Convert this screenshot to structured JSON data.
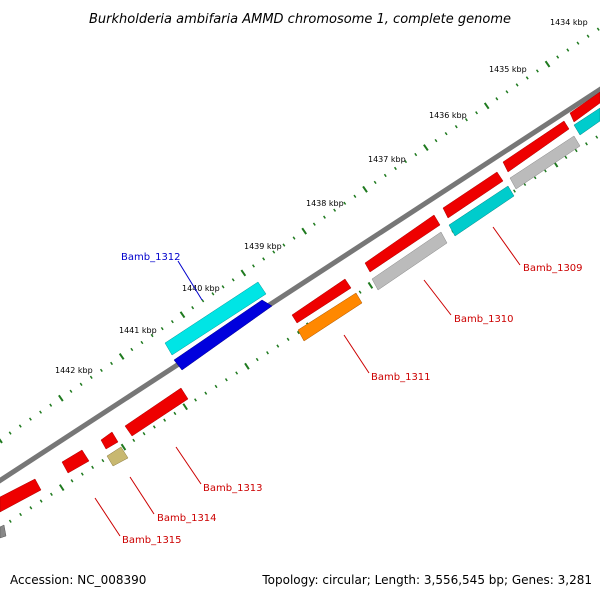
{
  "title": "Burkholderia ambifaria AMMD chromosome 1, complete genome",
  "accession": "Accession: NC_008390",
  "summary": "Topology: circular; Length: 3,556,545 bp; Genes: 3,281",
  "colors": {
    "backbone": "#777777",
    "tick": "#1f7a1f",
    "red": "#ee0000",
    "cyan": "#00cccc",
    "blue": "#0000dd",
    "gray": "#bbbbbb",
    "orange": "#ff8800",
    "khaki": "#c8b870",
    "label_red": "#cc0000",
    "label_blue": "#0000cc"
  },
  "kbp_labels": [
    "1434 kbp",
    "1435 kbp",
    "1436 kbp",
    "1437 kbp",
    "1438 kbp",
    "1439 kbp",
    "1440 kbp",
    "1441 kbp",
    "1442 kbp"
  ],
  "gene_labels": [
    {
      "text": "Bamb_1309",
      "color": "red"
    },
    {
      "text": "Bamb_1310",
      "color": "red"
    },
    {
      "text": "Bamb_1311",
      "color": "red"
    },
    {
      "text": "Bamb_1312",
      "color": "blue"
    },
    {
      "text": "Bamb_1313",
      "color": "red"
    },
    {
      "text": "Bamb_1314",
      "color": "red"
    },
    {
      "text": "Bamb_1315",
      "color": "red"
    }
  ],
  "features": [
    {
      "track": "outer",
      "color": "red"
    },
    {
      "track": "outer",
      "color": "cyan"
    },
    {
      "track": "outer",
      "color": "blue"
    },
    {
      "track": "inner",
      "color": "gray"
    },
    {
      "track": "inner",
      "color": "orange"
    },
    {
      "track": "inner",
      "color": "khaki"
    }
  ]
}
